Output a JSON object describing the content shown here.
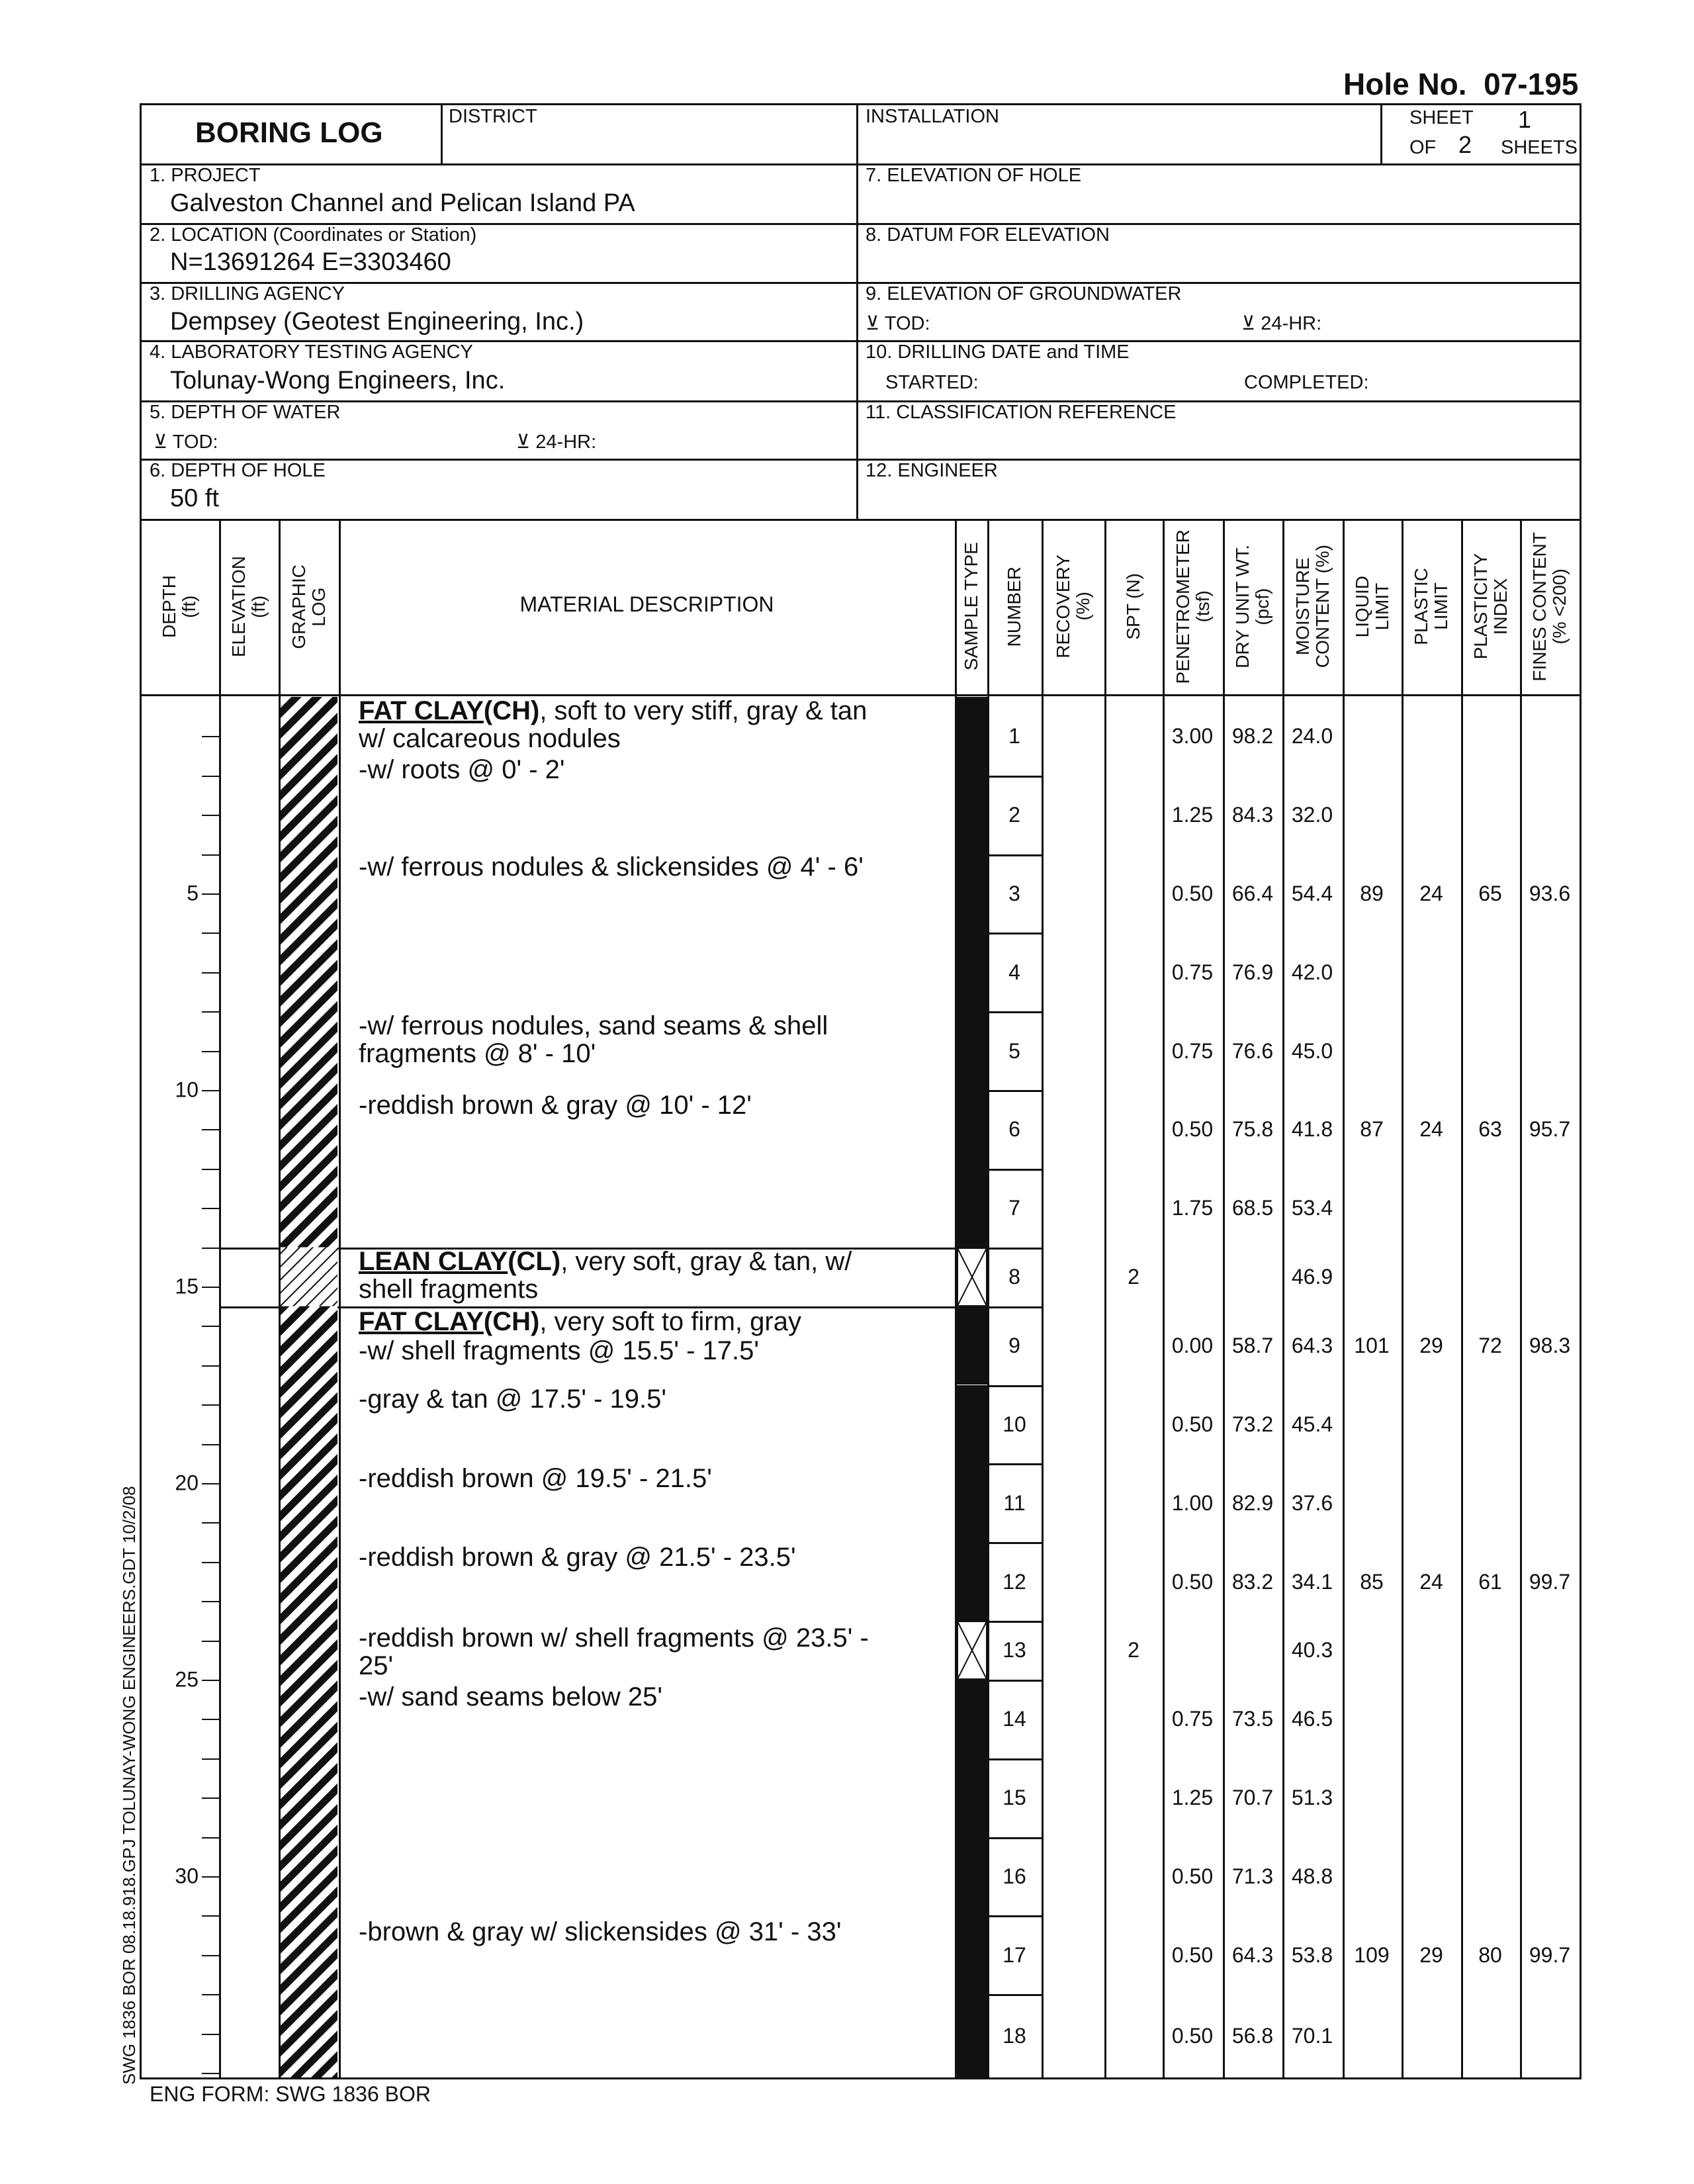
{
  "hole_no": "Hole No.  07-195",
  "header": {
    "title": "BORING LOG",
    "district_label": "DISTRICT",
    "installation_label": "INSTALLATION",
    "sheet_label": "SHEET",
    "sheet_no": "1",
    "of_label": "OF",
    "total_sheets": "2",
    "sheets_label": "SHEETS",
    "project_label": "1. PROJECT",
    "project": "Galveston Channel and Pelican Island PA",
    "location_label": "2. LOCATION (Coordinates or Station)",
    "location": "N=13691264  E=3303460",
    "drilling_agency_label": "3. DRILLING AGENCY",
    "drilling_agency": "Dempsey (Geotest Engineering, Inc.)",
    "lab_agency_label": "4. LABORATORY TESTING AGENCY",
    "lab_agency": "Tolunay-Wong Engineers, Inc.",
    "depth_water_label": "5. DEPTH OF WATER",
    "water_tod": "⊻ TOD:",
    "water_24hr": "⊻ 24-HR:",
    "depth_hole_label": "6. DEPTH OF HOLE",
    "depth_hole": "50 ft",
    "elev_hole_label": "7. ELEVATION OF HOLE",
    "datum_label": "8. DATUM FOR ELEVATION",
    "elev_gw_label": "9. ELEVATION OF GROUNDWATER",
    "gw_tod": "⊻ TOD:",
    "gw_24hr": "⊻ 24-HR:",
    "drill_date_label": "10. DRILLING DATE and TIME",
    "started_label": "STARTED:",
    "completed_label": "COMPLETED:",
    "class_ref_label": "11. CLASSIFICATION REFERENCE",
    "engineer_label": "12. ENGINEER"
  },
  "columns": {
    "depth": [
      "DEPTH",
      "(ft)"
    ],
    "elevation": [
      "ELEVATION",
      "(ft)"
    ],
    "graphic": [
      "GRAPHIC",
      "LOG"
    ],
    "description": "MATERIAL DESCRIPTION",
    "sample_type": [
      "SAMPLE TYPE"
    ],
    "number": [
      "NUMBER"
    ],
    "recovery": [
      "RECOVERY",
      "(%)"
    ],
    "spt": [
      "SPT (N)"
    ],
    "penetrometer": [
      "PENETROMETER",
      "(tsf)"
    ],
    "dry_unit": [
      "DRY UNIT WT.",
      "(pcf)"
    ],
    "moisture": [
      "MOISTURE",
      "CONTENT (%)"
    ],
    "ll": [
      "LIQUID",
      "LIMIT"
    ],
    "pl": [
      "PLASTIC",
      "LIMIT"
    ],
    "pi": [
      "PLASTICITY",
      "INDEX"
    ],
    "fines": [
      "FINES CONTENT",
      "(% <200)"
    ]
  },
  "depth_labels": [
    "5",
    "10",
    "15",
    "20",
    "25",
    "30"
  ],
  "strata": [
    {
      "top_ft": 0,
      "bottom_ft": 14,
      "pattern": "fat-clay"
    },
    {
      "top_ft": 14,
      "bottom_ft": 15.5,
      "pattern": "lean-clay"
    },
    {
      "top_ft": 15.5,
      "bottom_ft": 35.2,
      "pattern": "fat-clay"
    }
  ],
  "descriptions": [
    {
      "depth_ft": 0.35,
      "name": "FAT CLAY",
      "code": "(CH)",
      "lines": [
        ", soft to very stiff, gray & tan",
        "w/ calcareous nodules"
      ]
    },
    {
      "depth_ft": 1.85,
      "lines": [
        "-w/ roots @ 0' - 2'"
      ]
    },
    {
      "depth_ft": 4.33,
      "lines": [
        "-w/ ferrous nodules & slickensides @ 4' - 6'"
      ]
    },
    {
      "depth_ft": 8.37,
      "lines": [
        "-w/ ferrous nodules, sand seams & shell",
        "fragments @ 8' - 10'"
      ]
    },
    {
      "depth_ft": 10.39,
      "lines": [
        "-reddish brown & gray @ 10' - 12'"
      ]
    },
    {
      "depth_ft": 14.36,
      "name": "LEAN CLAY",
      "code": "(CL)",
      "lines": [
        ", very soft, gray & tan, w/",
        "shell fragments"
      ]
    },
    {
      "depth_ft": 15.89,
      "name": "FAT CLAY",
      "code": "(CH)",
      "lines": [
        ", very soft to firm, gray"
      ]
    },
    {
      "depth_ft": 16.63,
      "lines": [
        "-w/ shell fragments @ 15.5' - 17.5'"
      ]
    },
    {
      "depth_ft": 17.87,
      "lines": [
        "-gray & tan @ 17.5' - 19.5'"
      ]
    },
    {
      "depth_ft": 19.89,
      "lines": [
        "-reddish brown @ 19.5' - 21.5'"
      ]
    },
    {
      "depth_ft": 21.88,
      "lines": [
        "-reddish brown & gray @ 21.5' - 23.5'"
      ]
    },
    {
      "depth_ft": 23.94,
      "lines": [
        "-reddish brown w/ shell fragments @ 23.5' -",
        "25'"
      ]
    },
    {
      "depth_ft": 25.43,
      "lines": [
        "-w/ sand seams below 25'"
      ]
    },
    {
      "depth_ft": 31.42,
      "lines": [
        "-brown & gray w/ slickensides @ 31' - 33'"
      ]
    }
  ],
  "samples": [
    {
      "number": "1",
      "top_ft": 0,
      "bottom_ft": 2,
      "type": "tube",
      "pen": "3.00",
      "dry": "98.2",
      "mc": "24.0"
    },
    {
      "number": "2",
      "top_ft": 2,
      "bottom_ft": 4,
      "type": "tube",
      "pen": "1.25",
      "dry": "84.3",
      "mc": "32.0"
    },
    {
      "number": "3",
      "top_ft": 4,
      "bottom_ft": 6,
      "type": "tube",
      "pen": "0.50",
      "dry": "66.4",
      "mc": "54.4",
      "ll": "89",
      "pl": "24",
      "pi": "65",
      "fines": "93.6"
    },
    {
      "number": "4",
      "top_ft": 6,
      "bottom_ft": 8,
      "type": "tube",
      "pen": "0.75",
      "dry": "76.9",
      "mc": "42.0"
    },
    {
      "number": "5",
      "top_ft": 8,
      "bottom_ft": 10,
      "type": "tube",
      "pen": "0.75",
      "dry": "76.6",
      "mc": "45.0"
    },
    {
      "number": "6",
      "top_ft": 10,
      "bottom_ft": 12,
      "type": "tube",
      "pen": "0.50",
      "dry": "75.8",
      "mc": "41.8",
      "ll": "87",
      "pl": "24",
      "pi": "63",
      "fines": "95.7"
    },
    {
      "number": "7",
      "top_ft": 12,
      "bottom_ft": 14,
      "type": "tube",
      "pen": "1.75",
      "dry": "68.5",
      "mc": "53.4"
    },
    {
      "number": "8",
      "top_ft": 14,
      "bottom_ft": 15.5,
      "type": "spt",
      "spt": "2",
      "mc": "46.9"
    },
    {
      "number": "9",
      "top_ft": 15.5,
      "bottom_ft": 17.5,
      "type": "tube",
      "pen": "0.00",
      "dry": "58.7",
      "mc": "64.3",
      "ll": "101",
      "pl": "29",
      "pi": "72",
      "fines": "98.3"
    },
    {
      "number": "10",
      "top_ft": 17.5,
      "bottom_ft": 19.5,
      "type": "tube",
      "pen": "0.50",
      "dry": "73.2",
      "mc": "45.4"
    },
    {
      "number": "11",
      "top_ft": 19.5,
      "bottom_ft": 21.5,
      "type": "tube",
      "pen": "1.00",
      "dry": "82.9",
      "mc": "37.6"
    },
    {
      "number": "12",
      "top_ft": 21.5,
      "bottom_ft": 23.5,
      "type": "tube",
      "pen": "0.50",
      "dry": "83.2",
      "mc": "34.1",
      "ll": "85",
      "pl": "24",
      "pi": "61",
      "fines": "99.7"
    },
    {
      "number": "13",
      "top_ft": 23.5,
      "bottom_ft": 25,
      "type": "spt",
      "spt": "2",
      "mc": "40.3"
    },
    {
      "number": "14",
      "top_ft": 25,
      "bottom_ft": 27,
      "type": "tube",
      "pen": "0.75",
      "dry": "73.5",
      "mc": "46.5"
    },
    {
      "number": "15",
      "top_ft": 27,
      "bottom_ft": 29,
      "type": "tube",
      "pen": "1.25",
      "dry": "70.7",
      "mc": "51.3"
    },
    {
      "number": "16",
      "top_ft": 29,
      "bottom_ft": 31,
      "type": "tube",
      "pen": "0.50",
      "dry": "71.3",
      "mc": "48.8"
    },
    {
      "number": "17",
      "top_ft": 31,
      "bottom_ft": 33,
      "type": "tube",
      "pen": "0.50",
      "dry": "64.3",
      "mc": "53.8",
      "ll": "109",
      "pl": "29",
      "pi": "80",
      "fines": "99.7"
    },
    {
      "number": "18",
      "top_ft": 33,
      "bottom_ft": 35.2,
      "type": "tube",
      "pen": "0.50",
      "dry": "56.8",
      "mc": "70.1"
    }
  ],
  "side_note": "SWG 1836 BOR 08.18.918.GPJ TOLUNAY-WONG ENGINEERS.GDT 10/2/08",
  "footer": "ENG FORM: SWG 1836 BOR"
}
